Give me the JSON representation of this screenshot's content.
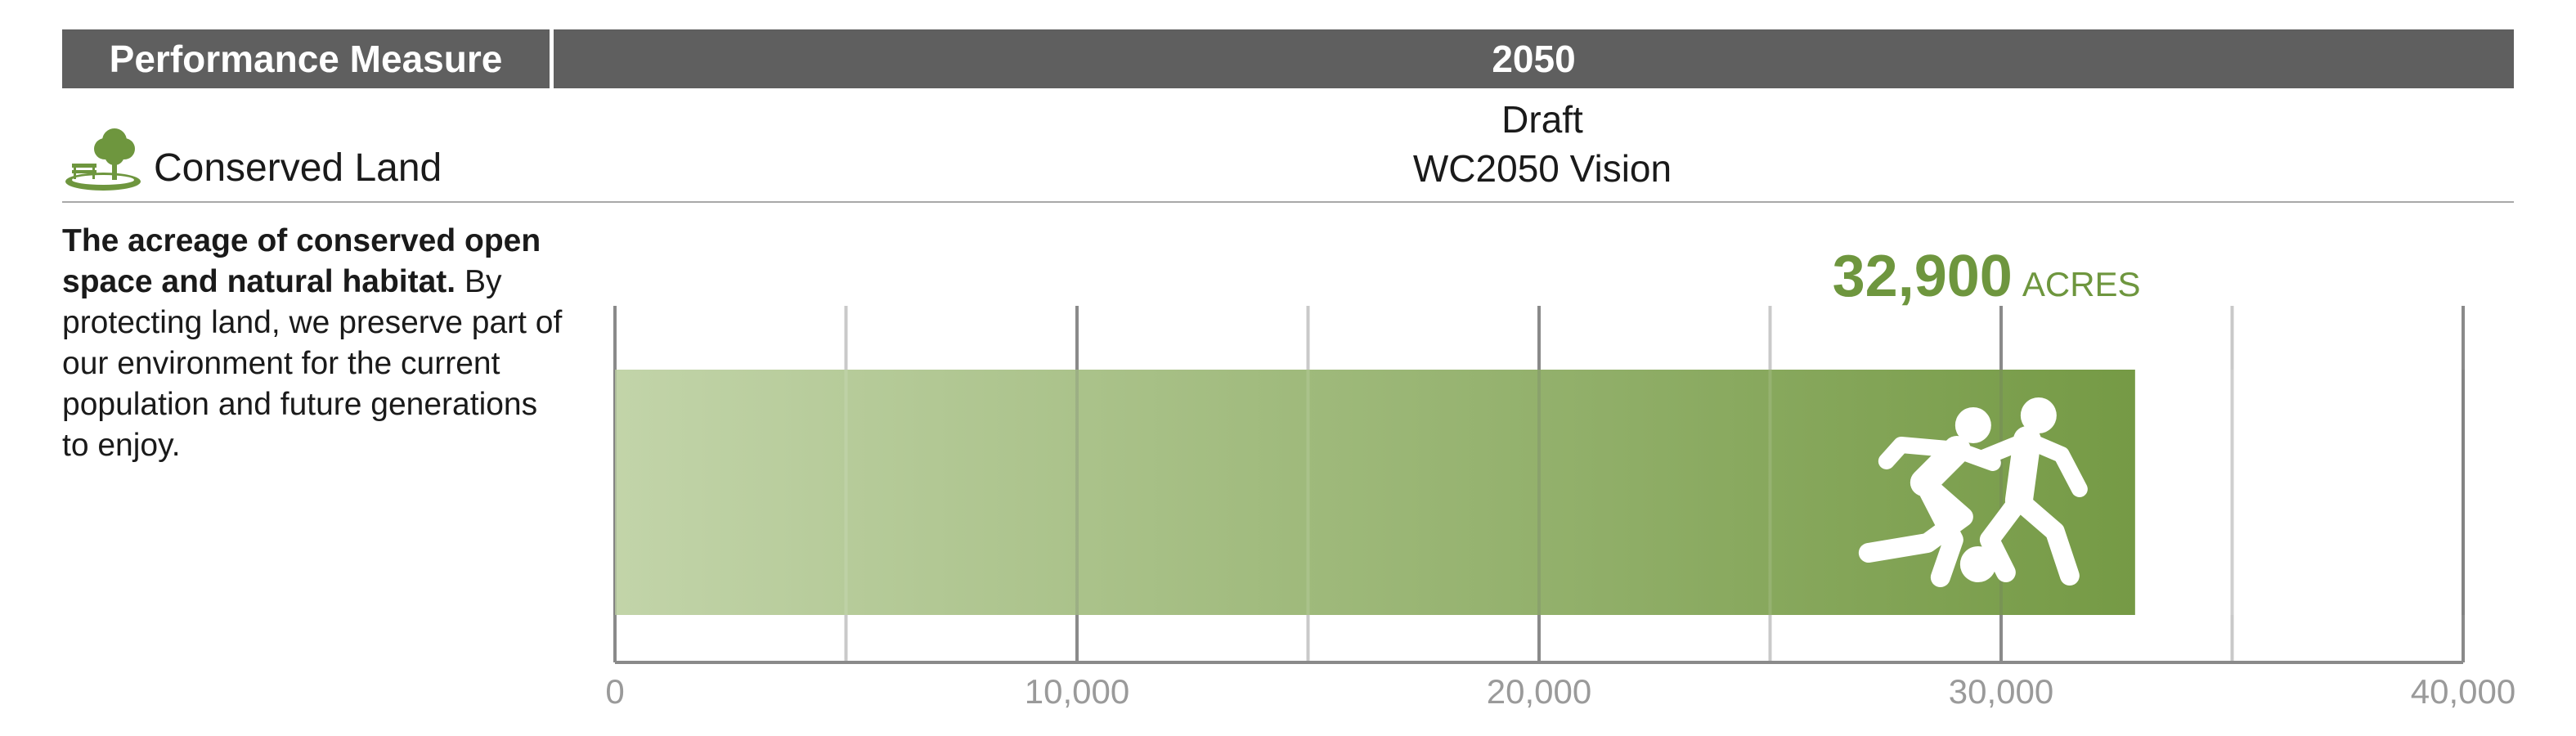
{
  "header": {
    "measure_col": "Performance Measure",
    "year_col": "2050"
  },
  "measure": {
    "name": "Conserved Land",
    "icon": "tree-bench-icon"
  },
  "scenario": {
    "line1": "Draft",
    "line2": "WC2050 Vision"
  },
  "description": {
    "bold": "The acreage of conserved open space and natural habitat.",
    "rest": " By protecting land, we preserve part of our environment for the current population and future generations to enjoy."
  },
  "colors": {
    "header_bg": "#5f5f5f",
    "accent": "#6e963e",
    "bar_start": "#c2d4a9",
    "bar_end": "#759a45"
  },
  "chart_data": {
    "type": "bar",
    "orientation": "horizontal",
    "values": [
      32900
    ],
    "value_label": "32,900",
    "unit_label": "ACRES",
    "xlim": [
      0,
      40000
    ],
    "major_ticks": [
      0,
      10000,
      20000,
      30000,
      40000
    ],
    "minor_ticks": [
      5000,
      15000,
      25000,
      35000
    ],
    "tick_labels": [
      "0",
      "10,000",
      "20,000",
      "30,000",
      "40,000"
    ],
    "grid": true,
    "bar_icon": "soccer-players-icon"
  }
}
